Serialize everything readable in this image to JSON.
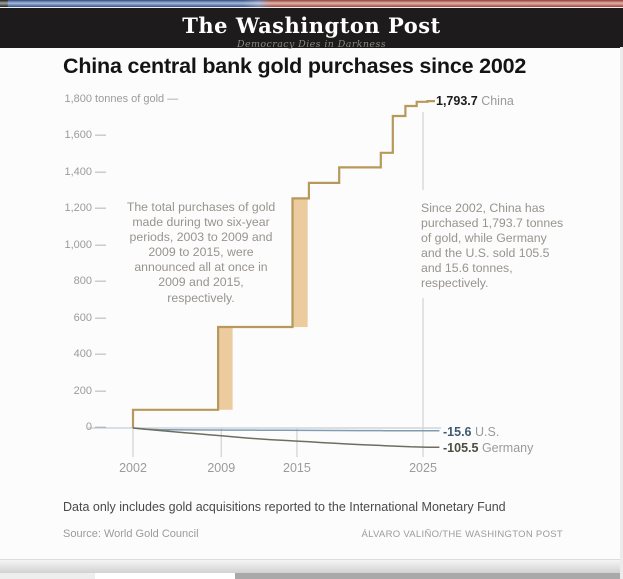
{
  "masthead": {
    "name": "The Washington Post",
    "tagline": "Democracy Dies in Darkness"
  },
  "chart_data": {
    "type": "step-line",
    "title": "China central bank gold purchases since 2002",
    "y_axis": {
      "unit": "tonnes of gold",
      "min": 0,
      "max": 1800,
      "ticks": [
        {
          "num": "1,800",
          "suffix": " tonnes of gold —",
          "value": 1800
        },
        {
          "num": "1,600",
          "suffix": " —",
          "value": 1600
        },
        {
          "num": "1,400",
          "suffix": " —",
          "value": 1400
        },
        {
          "num": "1,200",
          "suffix": " —",
          "value": 1200
        },
        {
          "num": "1,000",
          "suffix": " —",
          "value": 1000
        },
        {
          "num": "800",
          "suffix": " —",
          "value": 800
        },
        {
          "num": "600",
          "suffix": " —",
          "value": 600
        },
        {
          "num": "400",
          "suffix": " —",
          "value": 400
        },
        {
          "num": "200",
          "suffix": " —",
          "value": 200
        },
        {
          "num": "0",
          "suffix": " —",
          "value": 0
        }
      ]
    },
    "x_axis": {
      "ticks": [
        {
          "label": "2002",
          "year": 2002
        },
        {
          "label": "2009",
          "year": 2009
        },
        {
          "label": "2015",
          "year": 2015
        },
        {
          "label": "2025",
          "year": 2025
        }
      ]
    },
    "series": [
      {
        "name": "China",
        "color": "#b6995b",
        "end_label": {
          "value": "1,793.7",
          "name": "China"
        },
        "points": [
          [
            2002,
            0
          ],
          [
            2002,
            100
          ],
          [
            2008.75,
            100
          ],
          [
            2008.75,
            554
          ],
          [
            2014.65,
            554
          ],
          [
            2014.65,
            1260
          ],
          [
            2015.95,
            1260
          ],
          [
            2015.95,
            1345
          ],
          [
            2018.35,
            1345
          ],
          [
            2018.35,
            1430
          ],
          [
            2021.65,
            1430
          ],
          [
            2021.65,
            1510
          ],
          [
            2022.6,
            1510
          ],
          [
            2022.6,
            1712
          ],
          [
            2023.6,
            1712
          ],
          [
            2023.6,
            1767
          ],
          [
            2024.5,
            1767
          ],
          [
            2024.5,
            1790
          ],
          [
            2025.35,
            1790
          ],
          [
            2025.35,
            1793.7
          ],
          [
            2025.95,
            1793.7
          ]
        ]
      },
      {
        "name": "U.S.",
        "color": "#7f9cb3",
        "end_label": {
          "value": "-15.6",
          "name": "U.S."
        },
        "points": [
          [
            2002,
            0
          ],
          [
            2003,
            -6
          ],
          [
            2004,
            -9
          ],
          [
            2006,
            -10.5
          ],
          [
            2008,
            -11
          ],
          [
            2010,
            -11.5
          ],
          [
            2012,
            -12
          ],
          [
            2014,
            -12.5
          ],
          [
            2016,
            -13
          ],
          [
            2018,
            -13.5
          ],
          [
            2020,
            -14
          ],
          [
            2022,
            -14.7
          ],
          [
            2024,
            -15.3
          ],
          [
            2025.4,
            -15.6
          ],
          [
            2026.3,
            -15.6
          ]
        ]
      },
      {
        "name": "Germany",
        "color": "#6e6e60",
        "end_label": {
          "value": "-105.5",
          "name": "Germany"
        },
        "points": [
          [
            2002,
            0
          ],
          [
            2003,
            -7
          ],
          [
            2004,
            -13
          ],
          [
            2005,
            -19
          ],
          [
            2006,
            -25
          ],
          [
            2007,
            -31
          ],
          [
            2008,
            -37
          ],
          [
            2009,
            -43
          ],
          [
            2010,
            -49
          ],
          [
            2011,
            -55
          ],
          [
            2012,
            -60
          ],
          [
            2013,
            -64
          ],
          [
            2014,
            -68
          ],
          [
            2015,
            -72
          ],
          [
            2016,
            -76
          ],
          [
            2017,
            -80
          ],
          [
            2018,
            -84
          ],
          [
            2019,
            -88
          ],
          [
            2020,
            -91
          ],
          [
            2021,
            -94
          ],
          [
            2022,
            -97
          ],
          [
            2023,
            -100
          ],
          [
            2024,
            -103
          ],
          [
            2025.4,
            -105.5
          ],
          [
            2026.3,
            -105.5
          ]
        ]
      }
    ],
    "highlight_bands": [
      {
        "from_year": 2008.75,
        "to_year": 2009.9,
        "from_value": 100,
        "to_value": 554,
        "color": "#eccb9f"
      },
      {
        "from_year": 2014.65,
        "to_year": 2015.85,
        "from_value": 554,
        "to_value": 1260,
        "color": "#eccb9f"
      }
    ],
    "reference_line": {
      "year": 2025
    },
    "annotations": {
      "left": {
        "lines": [
          "The total purchases of gold",
          "made during two six-year",
          "periods, 2003 to 2009 and",
          "2009 to 2015, were",
          "announced all at once in",
          "2009 and 2015,",
          "respectively."
        ]
      },
      "right": {
        "lines": [
          "Since 2002, China has",
          "purchased 1,793.7 tonnes",
          "of gold, while Germany",
          "and the U.S. sold 105.5",
          "and 15.6 tonnes,",
          "respectively."
        ]
      }
    }
  },
  "footer": {
    "note": "Data only includes gold acquisitions reported to the International Monetary Fund",
    "source": "Source: World Gold Council",
    "credit": "ÁLVARO VALIÑO/THE WASHINGTON POST"
  },
  "colors": {
    "china": "#b6995b",
    "china_band": "#eccb9f",
    "us": "#7f9cb3",
    "germany": "#6e6e60",
    "zero_line": "#ccd6dd",
    "tick": "#d2d2d2",
    "masthead_bg": "#1d1b1b",
    "accent_blue": "#3d66ab",
    "accent_red": "#c25143"
  }
}
